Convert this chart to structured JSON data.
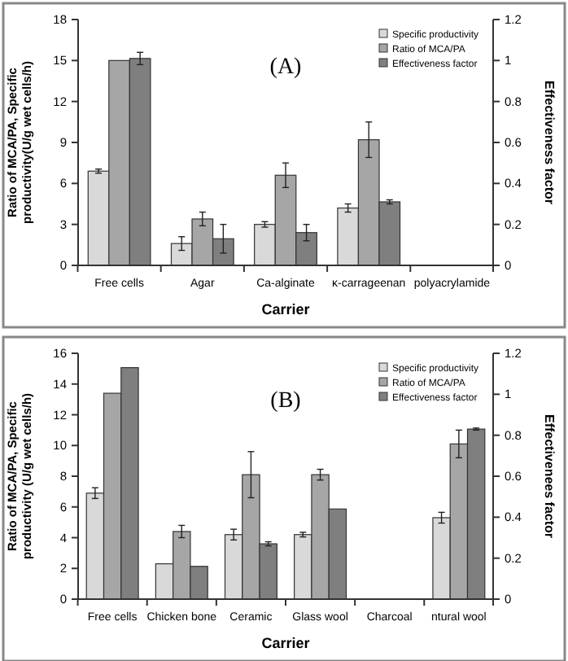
{
  "chart_data": [
    {
      "type": "bar",
      "title": "(A)",
      "xlabel": "Carrier",
      "ylabel": "Ratio of MCA/PA, Specific productivity(U/g wet cells/h)",
      "y2label": "Effectiveness factor",
      "categories": [
        "Free cells",
        "Agar",
        "Ca-alginate",
        "κ-carrageenan",
        "polyacrylamide"
      ],
      "ylim": [
        0,
        18
      ],
      "yticks": [
        0,
        3,
        6,
        9,
        12,
        15,
        18
      ],
      "y2lim": [
        0,
        1.2
      ],
      "y2ticks": [
        0,
        0.2,
        0.4,
        0.6,
        0.8,
        1,
        1.2
      ],
      "grid": false,
      "legend": "top right",
      "series": [
        {
          "name": "Specific productivity",
          "color": "#d9d9d9",
          "values": [
            6.9,
            1.6,
            3.0,
            4.2,
            null
          ],
          "errors": [
            0.15,
            0.5,
            0.2,
            0.3,
            null
          ]
        },
        {
          "name": "Ratio of MCA/PA",
          "color": "#a6a6a6",
          "values": [
            15.0,
            3.4,
            6.6,
            9.2,
            null
          ],
          "errors": [
            null,
            0.5,
            0.9,
            1.3,
            null
          ]
        },
        {
          "name": "Effectiveness factor",
          "color": "#7f7f7f",
          "axis": "y2",
          "values": [
            1.01,
            0.13,
            0.16,
            0.31,
            null
          ],
          "errors": [
            0.03,
            0.07,
            0.04,
            0.01,
            null
          ]
        }
      ]
    },
    {
      "type": "bar",
      "title": "(B)",
      "xlabel": "Carrier",
      "ylabel": "Ratio of MCA/PA, Specific productivity (U/g wet cells/h)",
      "y2label": "Effectivenees factor",
      "categories": [
        "Free cells",
        "Chicken bone",
        "Ceramic",
        "Glass wool",
        "Charcoal",
        "ntural wool"
      ],
      "ylim": [
        0,
        16
      ],
      "yticks": [
        0,
        2,
        4,
        6,
        8,
        10,
        12,
        14,
        16
      ],
      "y2lim": [
        0,
        1.2
      ],
      "y2ticks": [
        0,
        0.2,
        0.4,
        0.6,
        0.8,
        1,
        1.2
      ],
      "grid": false,
      "legend": "top right",
      "series": [
        {
          "name": "Specific productivity",
          "color": "#d9d9d9",
          "values": [
            6.9,
            2.3,
            4.2,
            4.2,
            null,
            5.3
          ],
          "errors": [
            0.35,
            null,
            0.35,
            0.15,
            null,
            0.35
          ]
        },
        {
          "name": "Ratio of MCA/PA",
          "color": "#a6a6a6",
          "values": [
            13.4,
            4.4,
            8.1,
            8.1,
            null,
            10.1
          ],
          "errors": [
            null,
            0.4,
            1.5,
            0.35,
            null,
            0.9
          ]
        },
        {
          "name": "Effectiveness factor",
          "color": "#7f7f7f",
          "axis": "y2",
          "values": [
            1.13,
            0.16,
            0.27,
            0.44,
            null,
            0.83
          ],
          "errors": [
            null,
            null,
            0.01,
            null,
            null,
            0.005
          ]
        }
      ]
    }
  ]
}
